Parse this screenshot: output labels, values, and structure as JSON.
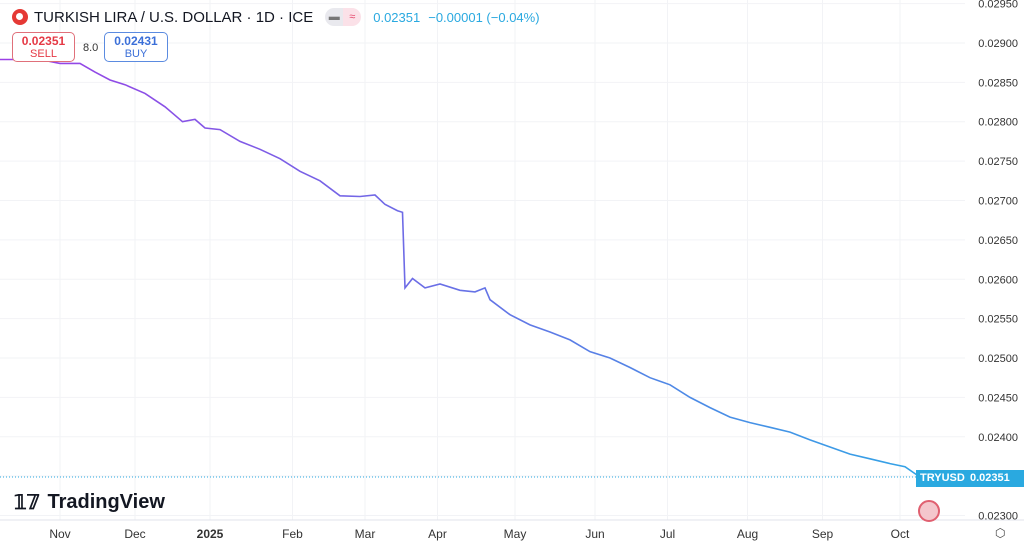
{
  "header": {
    "title": "TURKISH LIRA / U.S. DOLLAR · 1D · ICE",
    "last": "0.02351",
    "change": "−0.00001 (−0.04%)",
    "pill_icons": [
      "minus-icon",
      "approx-icon"
    ]
  },
  "trade": {
    "sell_price": "0.02351",
    "sell_label": "SELL",
    "spread": "8.0",
    "buy_price": "0.02431",
    "buy_label": "BUY"
  },
  "logo": "TradingView",
  "price_tag": {
    "symbol": "TRYUSD",
    "value": "0.02351"
  },
  "colors": {
    "line_start": "#9c3fe6",
    "line_end": "#33a3e6",
    "accent": "#2aa9e0"
  },
  "chart_data": {
    "type": "line",
    "title": "TURKISH LIRA / U.S. DOLLAR",
    "xlabel": "",
    "ylabel": "",
    "x_unit": "days",
    "xlim": [
      0,
      386
    ],
    "ylim": [
      0.02288,
      0.02952
    ],
    "grid": true,
    "y_ticks": [
      "0.02300",
      "0.02350",
      "0.02400",
      "0.02450",
      "0.02500",
      "0.02550",
      "0.02600",
      "0.02650",
      "0.02700",
      "0.02750",
      "0.02800",
      "0.02850",
      "0.02900",
      "0.02950"
    ],
    "x_ticks": [
      {
        "label": "Nov",
        "x": 24
      },
      {
        "label": "Dec",
        "x": 54
      },
      {
        "label": "2025",
        "x": 84
      },
      {
        "label": "Feb",
        "x": 117
      },
      {
        "label": "Mar",
        "x": 146
      },
      {
        "label": "Apr",
        "x": 175
      },
      {
        "label": "May",
        "x": 206
      },
      {
        "label": "Jun",
        "x": 238
      },
      {
        "label": "Jul",
        "x": 267
      },
      {
        "label": "Aug",
        "x": 299
      },
      {
        "label": "Sep",
        "x": 329
      },
      {
        "label": "Oct",
        "x": 360
      }
    ],
    "series": [
      {
        "name": "TRYUSD",
        "x": [
          0,
          16,
          24,
          32,
          38,
          44,
          50,
          58,
          66,
          73,
          78,
          82,
          88,
          96,
          104,
          112,
          120,
          128,
          136,
          144,
          150,
          154,
          159,
          161,
          162,
          165,
          170,
          176,
          184,
          190,
          194,
          196,
          204,
          212,
          220,
          228,
          236,
          244,
          252,
          260,
          268,
          276,
          284,
          292,
          300,
          308,
          316,
          324,
          332,
          340,
          348,
          356,
          362,
          367
        ],
        "values": [
          0.02879,
          0.02879,
          0.02874,
          0.02874,
          0.02863,
          0.02853,
          0.02847,
          0.02836,
          0.02819,
          0.028,
          0.02803,
          0.02792,
          0.0279,
          0.02775,
          0.02765,
          0.02753,
          0.02737,
          0.02725,
          0.02706,
          0.02705,
          0.02707,
          0.02695,
          0.02687,
          0.02685,
          0.02589,
          0.02601,
          0.02589,
          0.02594,
          0.02586,
          0.02584,
          0.02589,
          0.02574,
          0.02555,
          0.02542,
          0.02533,
          0.02523,
          0.02508,
          0.025,
          0.02488,
          0.02475,
          0.02466,
          0.0245,
          0.02437,
          0.02425,
          0.02418,
          0.02412,
          0.02406,
          0.02396,
          0.02387,
          0.02378,
          0.02372,
          0.02366,
          0.02362,
          0.02351
        ]
      }
    ]
  }
}
